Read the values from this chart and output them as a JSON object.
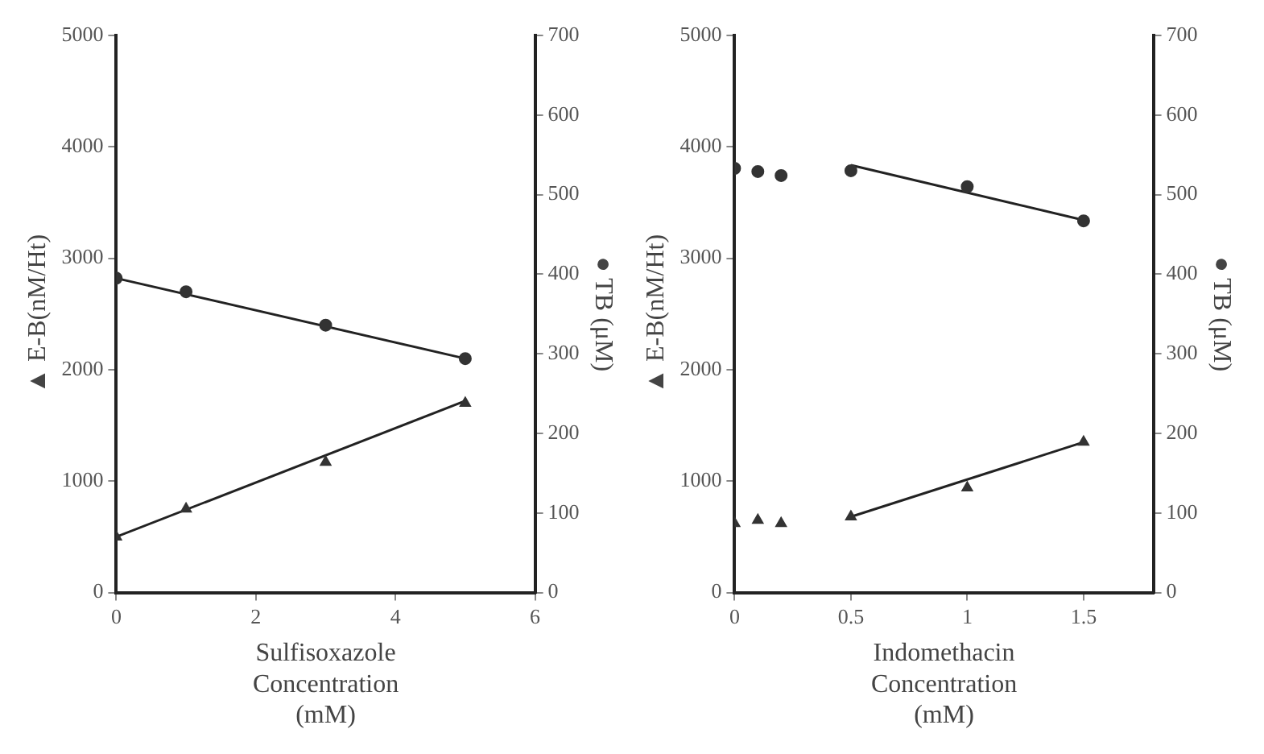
{
  "chart_data": [
    {
      "type": "scatter",
      "xlabel": "Sulfisoxazole Concentration (mM)",
      "ylabel": "▲ E-B(nM/Ht)",
      "y2label": "● TB (μM)",
      "xlim": [
        0,
        6
      ],
      "xticks": [
        0,
        2,
        4,
        6
      ],
      "ylim": [
        0,
        5000
      ],
      "yticks": [
        0,
        1000,
        2000,
        3000,
        4000,
        5000
      ],
      "y2lim": [
        0,
        700
      ],
      "y2ticks": [
        0,
        100,
        200,
        300,
        400,
        500,
        600,
        700
      ],
      "series": [
        {
          "type": "scatter",
          "marker": "triangle",
          "axis": "y",
          "color": "#333333",
          "x": [
            0,
            1,
            3,
            5
          ],
          "values": [
            500,
            750,
            1170,
            1700
          ]
        },
        {
          "type": "scatter",
          "marker": "circle",
          "axis": "y2",
          "color": "#333333",
          "x": [
            0,
            1,
            3,
            5
          ],
          "values": [
            395,
            378,
            336,
            294
          ]
        },
        {
          "type": "line",
          "marker": "none",
          "axis": "y",
          "color": "#222222",
          "x": [
            0,
            5
          ],
          "values": [
            500,
            1720
          ]
        },
        {
          "type": "line",
          "marker": "none",
          "axis": "y2",
          "color": "#222222",
          "x": [
            0,
            5
          ],
          "values": [
            395,
            294
          ]
        }
      ]
    },
    {
      "type": "scatter",
      "xlabel": "Indomethacin Concentration (mM)",
      "ylabel": "▲ E-B(nM/Ht)",
      "y2label": "● TB (μM)",
      "xlim": [
        0,
        1.8
      ],
      "xticks": [
        0,
        0.5,
        1,
        1.5
      ],
      "ylim": [
        0,
        5000
      ],
      "yticks": [
        0,
        1000,
        2000,
        3000,
        4000,
        5000
      ],
      "y2lim": [
        0,
        700
      ],
      "y2ticks": [
        0,
        100,
        200,
        300,
        400,
        500,
        600,
        700
      ],
      "series": [
        {
          "type": "scatter",
          "marker": "triangle",
          "axis": "y",
          "color": "#333333",
          "x": [
            0,
            0.1,
            0.2,
            0.5,
            1,
            1.5
          ],
          "values": [
            620,
            650,
            620,
            680,
            940,
            1350
          ]
        },
        {
          "type": "scatter",
          "marker": "circle",
          "axis": "y2",
          "color": "#333333",
          "x": [
            0,
            0.1,
            0.2,
            0.5,
            1,
            1.5
          ],
          "values": [
            533,
            529,
            524,
            530,
            510,
            467
          ]
        },
        {
          "type": "line",
          "marker": "none",
          "axis": "y",
          "color": "#222222",
          "x": [
            0.5,
            1.5
          ],
          "values": [
            680,
            1350
          ]
        },
        {
          "type": "line",
          "marker": "none",
          "axis": "y2",
          "color": "#222222",
          "x": [
            0.5,
            1.5
          ],
          "values": [
            537,
            468
          ]
        }
      ]
    }
  ]
}
